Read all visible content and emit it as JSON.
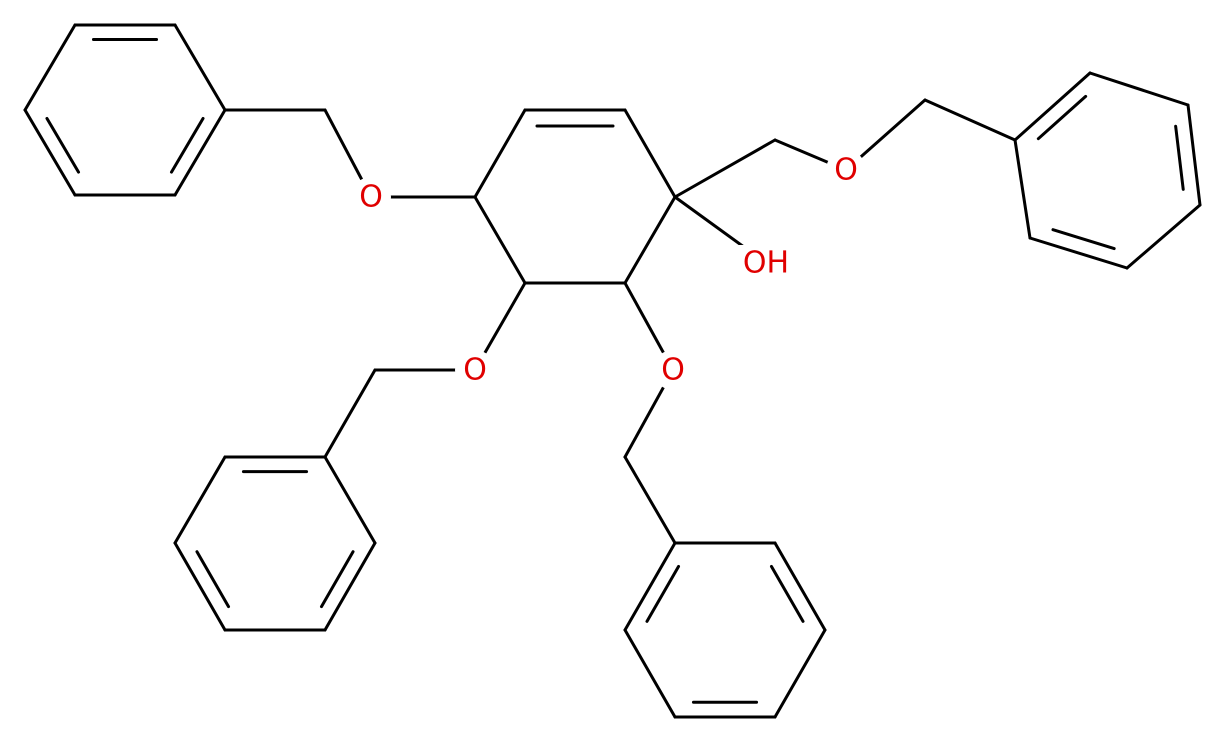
{
  "atoms": [
    {
      "label": "O"
    },
    {
      "label": "O"
    },
    {
      "label": "O"
    },
    {
      "label": "O"
    },
    {
      "label": "OH"
    }
  ]
}
